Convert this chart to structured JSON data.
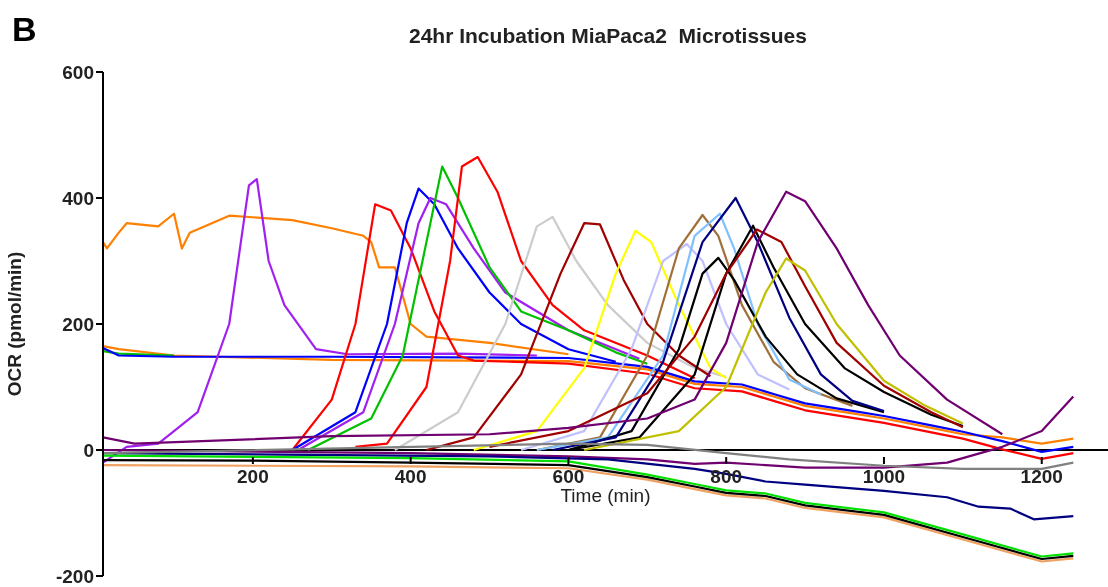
{
  "chart_data": {
    "type": "line",
    "title": "24hr Incubation MiaPaca2  Microtissues",
    "annotations": [
      "B"
    ],
    "xlabel": "Time (min)",
    "ylabel": "OCR (pmol/min)",
    "xlim": [
      10,
      1284
    ],
    "xticks": [
      200,
      400,
      600,
      800,
      1000,
      1200
    ],
    "ylim": [
      -200,
      600
    ],
    "yticks": [
      -200,
      0,
      200,
      400,
      600
    ],
    "marker": "none",
    "line_style": "solid",
    "series": [
      {
        "color": "#ff8000",
        "x": [
          10,
          15,
          30,
          40,
          80,
          100,
          110,
          120,
          170,
          250,
          300,
          340,
          350,
          360,
          380,
          400,
          420,
          500,
          600
        ],
        "values": [
          330,
          320,
          345,
          360,
          355,
          375,
          320,
          345,
          372,
          365,
          352,
          340,
          330,
          290,
          290,
          200,
          180,
          170,
          152
        ]
      },
      {
        "color": "#ff8000",
        "x": [
          10,
          30,
          100,
          300,
          600,
          700,
          760,
          820,
          860,
          900,
          960,
          1000,
          1060,
          1100,
          1150,
          1200,
          1240
        ],
        "values": [
          165,
          160,
          150,
          143,
          141,
          128,
          105,
          100,
          85,
          70,
          58,
          50,
          35,
          25,
          20,
          10,
          18
        ]
      },
      {
        "color": "#00c000",
        "x": [
          10,
          30,
          100
        ],
        "values": [
          157,
          153,
          150
        ]
      },
      {
        "color": "#0000ff",
        "x": [
          10,
          30,
          100,
          300,
          600,
          700,
          760,
          820,
          860,
          900,
          960,
          1000,
          1060,
          1100,
          1150,
          1200,
          1240
        ],
        "values": [
          162,
          150,
          148,
          148,
          146,
          132,
          109,
          104,
          89,
          74,
          62,
          54,
          39,
          29,
          14,
          -3,
          5
        ]
      },
      {
        "color": "#a020f0",
        "x": [
          10,
          40,
          80,
          100,
          130,
          170,
          195,
          205,
          220,
          240,
          280,
          320,
          460,
          560
        ],
        "values": [
          -20,
          5,
          10,
          30,
          60,
          200,
          420,
          430,
          300,
          230,
          160,
          152,
          153,
          150
        ]
      },
      {
        "color": "#ff0000",
        "x": [
          250,
          300,
          330,
          355,
          375,
          400,
          430,
          460,
          480,
          600,
          700,
          760,
          820,
          860,
          900,
          960,
          1000,
          1060,
          1100,
          1150,
          1200,
          1240
        ],
        "values": [
          0,
          80,
          200,
          390,
          380,
          320,
          220,
          150,
          142,
          137,
          121,
          98,
          93,
          78,
          63,
          51,
          43,
          28,
          18,
          1,
          -14,
          -5
        ]
      },
      {
        "color": "#0000ff",
        "x": [
          250,
          330,
          370,
          395,
          410,
          430,
          460,
          500,
          540,
          600,
          660
        ],
        "values": [
          0,
          60,
          200,
          360,
          415,
          390,
          320,
          250,
          200,
          160,
          140
        ]
      },
      {
        "color": "#a020f0",
        "x": [
          260,
          340,
          380,
          410,
          425,
          445,
          480,
          520,
          600,
          650,
          690
        ],
        "values": [
          2,
          60,
          200,
          360,
          400,
          390,
          320,
          250,
          190,
          165,
          145
        ]
      },
      {
        "color": "#00c000",
        "x": [
          270,
          350,
          390,
          420,
          440,
          460,
          500,
          540,
          600,
          660,
          700
        ],
        "values": [
          0,
          50,
          150,
          330,
          450,
          400,
          290,
          220,
          190,
          155,
          137
        ]
      },
      {
        "color": "#ff0000",
        "x": [
          330,
          370,
          420,
          450,
          465,
          485,
          510,
          540,
          580,
          620,
          700,
          760
        ],
        "values": [
          5,
          10,
          100,
          300,
          450,
          465,
          410,
          300,
          230,
          190,
          150,
          114
        ]
      },
      {
        "color": "#cccccc",
        "x": [
          380,
          460,
          520,
          560,
          580,
          610,
          650,
          700,
          760,
          800
        ],
        "values": [
          0,
          60,
          200,
          355,
          370,
          300,
          230,
          170,
          130,
          116
        ]
      },
      {
        "color": "#a00000",
        "x": [
          420,
          480,
          540,
          590,
          620,
          640,
          670,
          700,
          740,
          780
        ],
        "values": [
          0,
          20,
          120,
          280,
          360,
          358,
          270,
          200,
          150,
          117
        ]
      },
      {
        "color": "#ffff00",
        "x": [
          480,
          560,
          620,
          660,
          685,
          705,
          740,
          780,
          800
        ],
        "values": [
          0,
          30,
          130,
          280,
          348,
          330,
          230,
          130,
          114
        ]
      },
      {
        "color": "#c0c0ff",
        "x": [
          540,
          620,
          680,
          720,
          750,
          770,
          800,
          840,
          880
        ],
        "values": [
          0,
          30,
          160,
          300,
          327,
          300,
          200,
          120,
          96
        ]
      },
      {
        "color": "#a0703a",
        "x": [
          560,
          640,
          700,
          740,
          770,
          790,
          820,
          860,
          900,
          960
        ],
        "values": [
          0,
          20,
          150,
          320,
          373,
          340,
          230,
          140,
          98,
          70
        ]
      },
      {
        "color": "#80c0ff",
        "x": [
          560,
          650,
          720,
          760,
          792,
          810,
          840,
          880,
          920
        ],
        "values": [
          0,
          20,
          150,
          340,
          375,
          320,
          200,
          112,
          88
        ]
      },
      {
        "color": "#000000",
        "x": [
          600,
          680,
          740,
          770,
          790,
          810,
          850,
          890,
          940,
          1000
        ],
        "values": [
          0,
          30,
          160,
          280,
          305,
          270,
          180,
          120,
          82,
          60
        ]
      },
      {
        "color": "#000080",
        "x": [
          580,
          660,
          720,
          770,
          812,
          840,
          880,
          920,
          960,
          1000
        ],
        "values": [
          0,
          20,
          140,
          330,
          400,
          330,
          210,
          120,
          78,
          62
        ]
      },
      {
        "color": "#000000",
        "x": [
          600,
          690,
          760,
          800,
          834,
          860,
          900,
          950,
          1000,
          1060,
          1100
        ],
        "values": [
          0,
          20,
          120,
          280,
          356,
          290,
          200,
          130,
          92,
          56,
          38
        ]
      },
      {
        "color": "#a00000",
        "x": [
          500,
          600,
          700,
          760,
          800,
          839,
          870,
          900,
          940,
          1000,
          1060,
          1100
        ],
        "values": [
          5,
          30,
          90,
          180,
          280,
          350,
          330,
          260,
          170,
          102,
          60,
          36
        ]
      },
      {
        "color": "#c0c000",
        "x": [
          620,
          740,
          800,
          850,
          876,
          900,
          940,
          1000,
          1050,
          1100
        ],
        "values": [
          0,
          30,
          100,
          250,
          304,
          285,
          200,
          110,
          72,
          42
        ]
      },
      {
        "color": "#700070",
        "x": [
          10,
          50,
          300,
          500,
          600,
          700,
          760,
          800,
          840,
          876,
          900,
          940,
          980,
          1020,
          1080,
          1150
        ],
        "values": [
          20,
          10,
          22,
          25,
          35,
          50,
          80,
          170,
          330,
          410,
          395,
          320,
          230,
          150,
          80,
          25
        ]
      },
      {
        "color": "#700070",
        "x": [
          10,
          400,
          600,
          700,
          760,
          800,
          900,
          1000,
          1080,
          1150,
          1200,
          1240
        ],
        "values": [
          0,
          -5,
          -10,
          -15,
          -22,
          -20,
          -28,
          -28,
          -20,
          5,
          30,
          85
        ]
      },
      {
        "color": "#000080",
        "x": [
          10,
          500,
          650,
          760,
          800,
          850,
          900,
          1000,
          1080,
          1120,
          1160,
          1190,
          1240
        ],
        "values": [
          -5,
          -10,
          -15,
          -30,
          -38,
          -50,
          -55,
          -65,
          -75,
          -90,
          -93,
          -110,
          -105
        ]
      },
      {
        "color": "#808080",
        "x": [
          10,
          600,
          700,
          800,
          880,
          1000,
          1100,
          1200,
          1240
        ],
        "values": [
          -5,
          10,
          8,
          -5,
          -15,
          -25,
          -30,
          -30,
          -20
        ]
      },
      {
        "color": "#f0a060",
        "x": [
          10,
          400,
          600,
          700,
          760,
          800,
          850,
          900,
          1000,
          1100,
          1200,
          1240
        ],
        "values": [
          -24,
          -26,
          -29,
          -47,
          -62,
          -72,
          -77,
          -92,
          -107,
          -142,
          -177,
          -172
        ]
      },
      {
        "color": "#000000",
        "x": [
          10,
          200,
          400,
          600,
          700,
          760,
          800,
          850,
          900,
          1000,
          1100,
          1200,
          1240
        ],
        "values": [
          -16,
          -17,
          -20,
          -24,
          -43,
          -58,
          -68,
          -73,
          -88,
          -103,
          -138,
          -173,
          -168
        ]
      },
      {
        "color": "#00e000",
        "x": [
          10,
          400,
          600,
          700,
          760,
          800,
          850,
          900,
          1000,
          1100,
          1200,
          1240
        ],
        "values": [
          -9,
          -13,
          -18,
          -39,
          -54,
          -64,
          -69,
          -84,
          -99,
          -134,
          -169,
          -164
        ]
      }
    ]
  }
}
